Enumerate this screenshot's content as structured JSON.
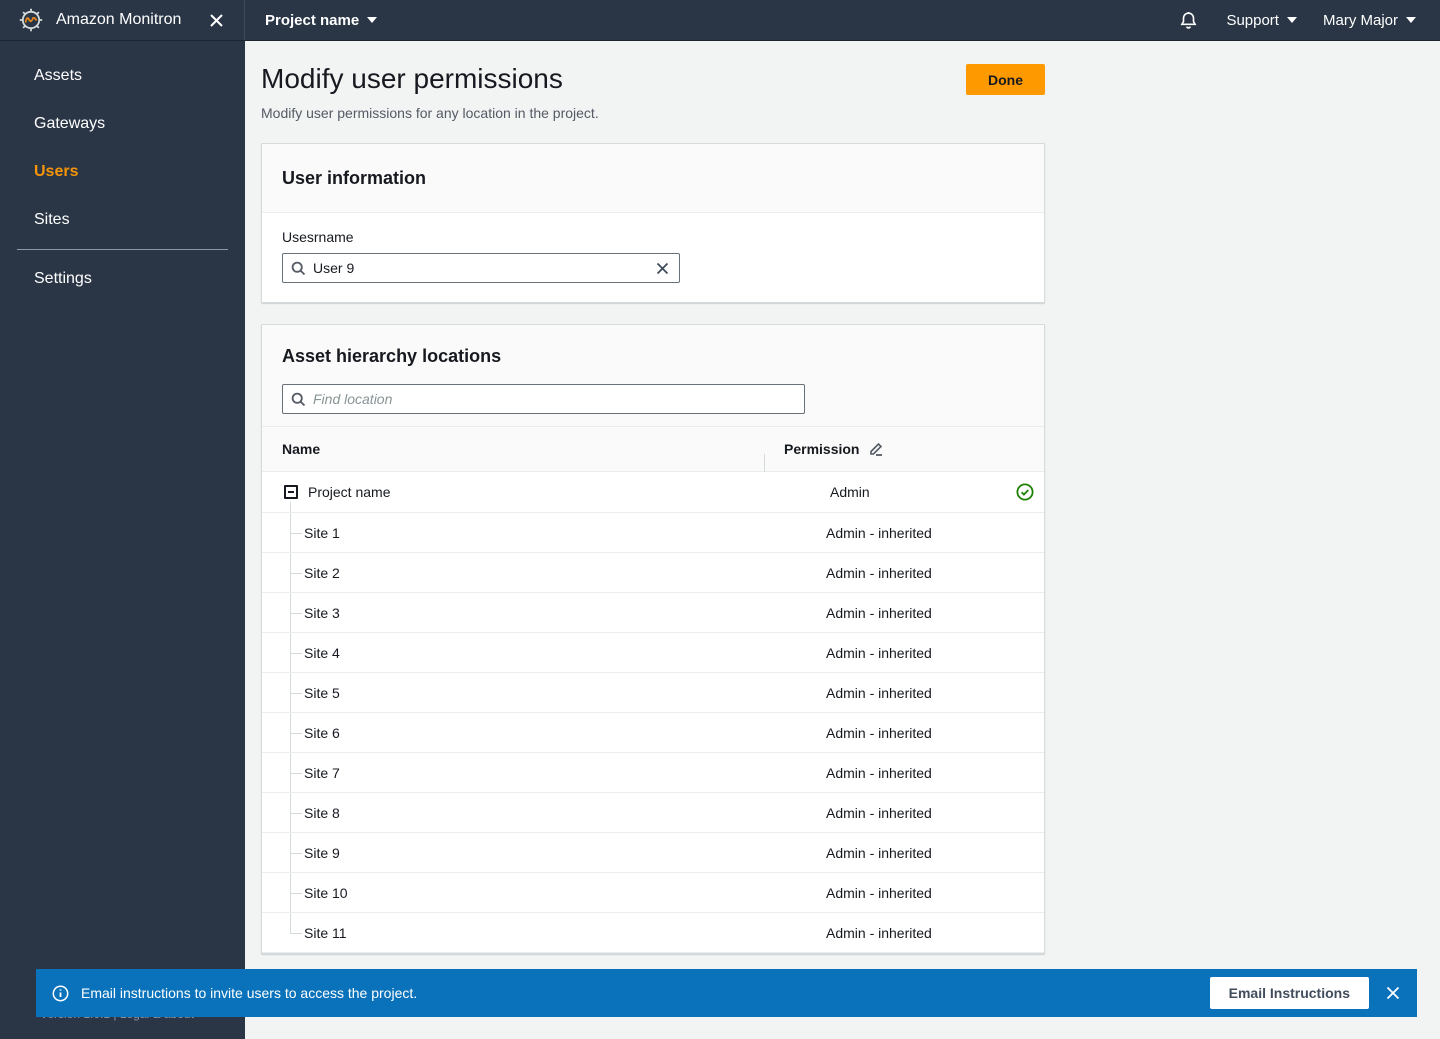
{
  "sidebar": {
    "title": "Amazon Monitron",
    "items": [
      {
        "id": "assets",
        "label": "Assets",
        "active": false,
        "divider_before": false
      },
      {
        "id": "gateways",
        "label": "Gateways",
        "active": false,
        "divider_before": false
      },
      {
        "id": "users",
        "label": "Users",
        "active": true,
        "divider_before": false
      },
      {
        "id": "sites",
        "label": "Sites",
        "active": false,
        "divider_before": false
      },
      {
        "id": "settings",
        "label": "Settings",
        "active": false,
        "divider_before": true
      }
    ],
    "version_text": "Version 1.0.1 | Legal & about"
  },
  "topbar": {
    "project_label": "Project name",
    "support_label": "Support",
    "user_label": "Mary Major"
  },
  "page": {
    "title": "Modify user permissions",
    "subtitle": "Modify user permissions for any location in the project.",
    "done_label": "Done"
  },
  "user_info": {
    "title": "User information",
    "username_label": "Usesrname",
    "username_value": "User 9"
  },
  "asset_hierarchy": {
    "title": "Asset hierarchy locations",
    "find_placeholder": "Find location",
    "columns": [
      "Name",
      "Permission"
    ],
    "rows": [
      {
        "name": "Project name",
        "permission": "Admin",
        "root": true,
        "selected": true
      },
      {
        "name": "Site 1",
        "permission": "Admin - inherited",
        "root": false,
        "selected": false
      },
      {
        "name": "Site 2",
        "permission": "Admin - inherited",
        "root": false,
        "selected": false
      },
      {
        "name": "Site 3",
        "permission": "Admin - inherited",
        "root": false,
        "selected": false
      },
      {
        "name": "Site 4",
        "permission": "Admin - inherited",
        "root": false,
        "selected": false
      },
      {
        "name": "Site 5",
        "permission": "Admin - inherited",
        "root": false,
        "selected": false
      },
      {
        "name": "Site 6",
        "permission": "Admin - inherited",
        "root": false,
        "selected": false
      },
      {
        "name": "Site 7",
        "permission": "Admin - inherited",
        "root": false,
        "selected": false
      },
      {
        "name": "Site 8",
        "permission": "Admin - inherited",
        "root": false,
        "selected": false
      },
      {
        "name": "Site 9",
        "permission": "Admin - inherited",
        "root": false,
        "selected": false
      },
      {
        "name": "Site 10",
        "permission": "Admin - inherited",
        "root": false,
        "selected": false
      },
      {
        "name": "Site 11",
        "permission": "Admin - inherited",
        "root": false,
        "selected": false
      }
    ]
  },
  "banner": {
    "message": "Email instructions to invite users to access the project.",
    "button_label": "Email Instructions"
  },
  "colors": {
    "sidebar_bg": "#2a3646",
    "accent_orange": "#f59507",
    "primary_button_bg": "#ff9900",
    "banner_blue": "#0a72bb",
    "success_green": "#1d8102"
  }
}
